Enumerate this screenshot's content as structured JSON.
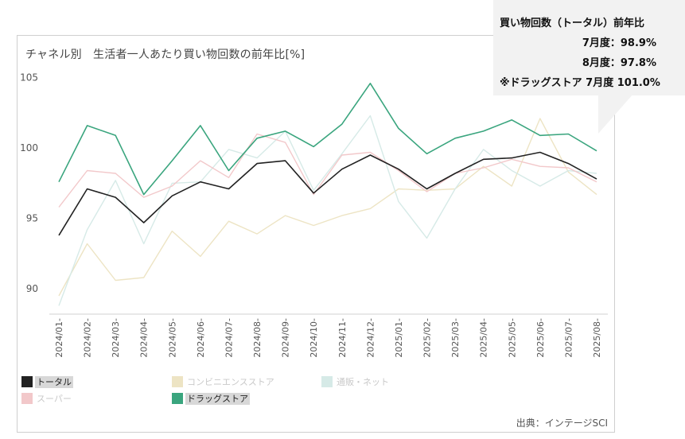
{
  "callout": {
    "title": "買い物回数（トータル）前年比",
    "line1": "7月度：98.9%",
    "line2": "8月度：97.8%",
    "line3": "※ドラッグストア 7月度 101.0%"
  },
  "source": "出典：インテージSCI",
  "chart_data": {
    "type": "line",
    "title": "チャネル別　生活者一人あたり買い物回数の前年比[%]",
    "xlabel": "",
    "ylabel": "",
    "ylim": [
      88.2,
      106.0
    ],
    "yticks": [
      90,
      95,
      100,
      105
    ],
    "grid": false,
    "categories": [
      "2024/01-",
      "2024/02-",
      "2024/03-",
      "2024/04-",
      "2024/05-",
      "2024/06-",
      "2024/07-",
      "2024/08-",
      "2024/09-",
      "2024/10-",
      "2024/11-",
      "2024/12-",
      "2025/01-",
      "2025/02-",
      "2025/03-",
      "2025/04-",
      "2025/05-",
      "2025/06-",
      "2025/07-",
      "2025/08-"
    ],
    "series": [
      {
        "name": "トータル",
        "color": "#222222",
        "legend_active": true,
        "values": [
          93.8,
          97.1,
          96.5,
          94.7,
          96.6,
          97.6,
          97.1,
          98.9,
          99.1,
          96.8,
          98.5,
          99.5,
          98.5,
          97.1,
          98.2,
          99.2,
          99.3,
          99.7,
          98.9,
          97.8
        ]
      },
      {
        "name": "コンビニエンスストア",
        "color": "#ede4c4",
        "legend_active": false,
        "values": [
          89.5,
          93.2,
          90.6,
          90.8,
          94.1,
          92.3,
          94.8,
          93.9,
          95.2,
          94.5,
          95.2,
          95.7,
          97.1,
          97.0,
          97.1,
          98.7,
          97.3,
          102.1,
          98.3,
          96.7
        ]
      },
      {
        "name": "通販・ネット",
        "color": "#d6eae7",
        "legend_active": false,
        "values": [
          88.8,
          94.2,
          97.7,
          93.2,
          97.5,
          97.6,
          99.9,
          99.3,
          101.2,
          97.0,
          99.6,
          102.3,
          96.2,
          93.6,
          97.1,
          99.9,
          98.4,
          97.3,
          98.4,
          98.2
        ]
      },
      {
        "name": "スーパー",
        "color": "#f2c8ca",
        "legend_active": false,
        "values": [
          95.8,
          98.4,
          98.2,
          96.5,
          97.3,
          99.1,
          97.9,
          101.0,
          100.4,
          96.7,
          99.5,
          99.7,
          98.4,
          96.9,
          98.2,
          98.6,
          99.2,
          98.7,
          98.6,
          97.6
        ]
      },
      {
        "name": "ドラッグストア",
        "color": "#3aa57e",
        "legend_active": true,
        "values": [
          97.6,
          101.6,
          100.9,
          96.7,
          99.1,
          101.6,
          98.4,
          100.7,
          101.2,
          100.1,
          101.7,
          104.6,
          101.4,
          99.6,
          100.7,
          101.2,
          102.0,
          100.9,
          101.0,
          99.8
        ]
      }
    ],
    "legend_placement": "bottom"
  }
}
